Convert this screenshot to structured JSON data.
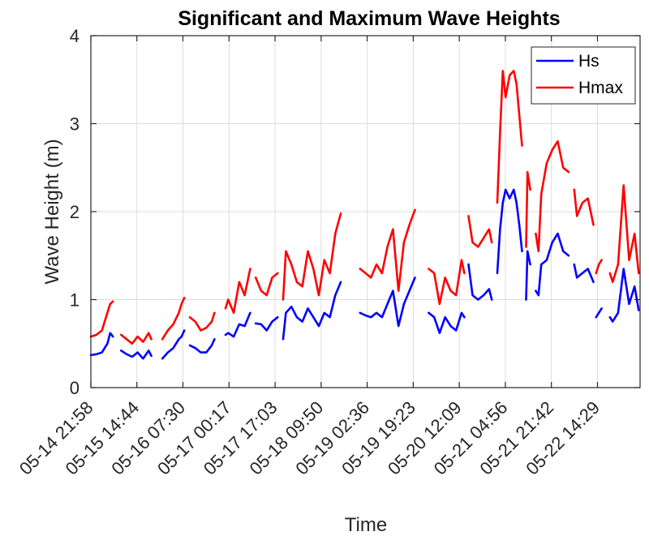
{
  "chart_data": {
    "type": "line",
    "title": "Significant and Maximum Wave Heights",
    "xlabel": "Time",
    "ylabel": "Wave Height (m)",
    "ylim": [
      0,
      4
    ],
    "yticks": [
      0,
      1,
      2,
      3,
      4
    ],
    "xlim": [
      "05-14 21:58",
      "05-23 06:00"
    ],
    "xticks": [
      "05-14 21:58",
      "05-15 14:44",
      "05-16 07:30",
      "05-17 00:17",
      "05-17 17:03",
      "05-18 09:50",
      "05-19 02:36",
      "05-19 19:23",
      "05-20 12:09",
      "05-21 04:56",
      "05-21 21:42",
      "05-22 14:29"
    ],
    "grid": true,
    "legend": "top-right",
    "colors": {
      "Hs": "#0000ff",
      "Hmax": "#ff0000"
    },
    "series": [
      {
        "name": "Hs",
        "segments": [
          [
            [
              "05-14 21:58",
              0.37
            ],
            [
              "05-15 00:00",
              0.38
            ],
            [
              "05-15 02:00",
              0.4
            ],
            [
              "05-15 03:00",
              0.45
            ],
            [
              "05-15 04:00",
              0.5
            ],
            [
              "05-15 05:00",
              0.62
            ],
            [
              "05-15 06:00",
              0.58
            ]
          ],
          [
            [
              "05-15 09:00",
              0.42
            ],
            [
              "05-15 11:00",
              0.38
            ],
            [
              "05-15 13:00",
              0.35
            ],
            [
              "05-15 15:00",
              0.4
            ],
            [
              "05-15 17:00",
              0.33
            ],
            [
              "05-15 19:00",
              0.42
            ],
            [
              "05-15 20:00",
              0.36
            ]
          ],
          [
            [
              "05-16 00:00",
              0.33
            ],
            [
              "05-16 02:00",
              0.4
            ],
            [
              "05-16 04:00",
              0.45
            ],
            [
              "05-16 06:00",
              0.55
            ],
            [
              "05-16 07:00",
              0.58
            ],
            [
              "05-16 08:00",
              0.65
            ]
          ],
          [
            [
              "05-16 10:00",
              0.48
            ],
            [
              "05-16 12:00",
              0.45
            ],
            [
              "05-16 14:00",
              0.4
            ],
            [
              "05-16 16:00",
              0.4
            ],
            [
              "05-16 18:00",
              0.48
            ],
            [
              "05-16 19:00",
              0.55
            ]
          ],
          [
            [
              "05-16 23:00",
              0.6
            ],
            [
              "05-17 00:00",
              0.62
            ],
            [
              "05-17 02:00",
              0.58
            ],
            [
              "05-17 04:00",
              0.72
            ],
            [
              "05-17 06:00",
              0.7
            ],
            [
              "05-17 08:00",
              0.85
            ]
          ],
          [
            [
              "05-17 10:00",
              0.73
            ],
            [
              "05-17 12:00",
              0.72
            ],
            [
              "05-17 14:00",
              0.65
            ],
            [
              "05-17 16:00",
              0.75
            ],
            [
              "05-17 18:00",
              0.8
            ]
          ],
          [
            [
              "05-17 20:00",
              0.55
            ],
            [
              "05-17 21:00",
              0.85
            ],
            [
              "05-17 23:00",
              0.92
            ],
            [
              "05-18 01:00",
              0.8
            ],
            [
              "05-18 03:00",
              0.75
            ],
            [
              "05-18 05:00",
              0.9
            ],
            [
              "05-18 07:00",
              0.8
            ],
            [
              "05-18 09:00",
              0.7
            ],
            [
              "05-18 11:00",
              0.85
            ],
            [
              "05-18 13:00",
              0.8
            ],
            [
              "05-18 15:00",
              1.05
            ],
            [
              "05-18 17:00",
              1.2
            ]
          ],
          [
            [
              "05-19 00:00",
              0.85
            ],
            [
              "05-19 02:00",
              0.82
            ],
            [
              "05-19 04:00",
              0.8
            ],
            [
              "05-19 06:00",
              0.85
            ],
            [
              "05-19 08:00",
              0.8
            ],
            [
              "05-19 10:00",
              0.95
            ],
            [
              "05-19 12:00",
              1.1
            ],
            [
              "05-19 14:00",
              0.7
            ],
            [
              "05-19 16:00",
              0.95
            ],
            [
              "05-19 18:00",
              1.1
            ],
            [
              "05-19 20:00",
              1.25
            ]
          ],
          [
            [
              "05-20 01:00",
              0.85
            ],
            [
              "05-20 03:00",
              0.8
            ],
            [
              "05-20 05:00",
              0.62
            ],
            [
              "05-20 07:00",
              0.8
            ],
            [
              "05-20 09:00",
              0.7
            ],
            [
              "05-20 11:00",
              0.65
            ],
            [
              "05-20 13:00",
              0.85
            ],
            [
              "05-20 14:00",
              0.8
            ]
          ],
          [
            [
              "05-20 15:30",
              1.4
            ],
            [
              "05-20 17:00",
              1.05
            ],
            [
              "05-20 19:00",
              1.0
            ],
            [
              "05-20 21:00",
              1.05
            ],
            [
              "05-20 23:00",
              1.12
            ],
            [
              "05-21 00:00",
              1.0
            ]
          ],
          [
            [
              "05-21 02:00",
              1.3
            ],
            [
              "05-21 03:00",
              1.8
            ],
            [
              "05-21 04:00",
              2.1
            ],
            [
              "05-21 05:00",
              2.25
            ],
            [
              "05-21 06:30",
              2.15
            ],
            [
              "05-21 08:00",
              2.25
            ],
            [
              "05-21 09:00",
              2.1
            ],
            [
              "05-21 10:00",
              1.85
            ],
            [
              "05-21 11:00",
              1.55
            ]
          ],
          [
            [
              "05-21 12:30",
              1.0
            ],
            [
              "05-21 13:00",
              1.55
            ],
            [
              "05-21 14:00",
              1.4
            ]
          ],
          [
            [
              "05-21 16:00",
              1.1
            ],
            [
              "05-21 17:00",
              1.05
            ],
            [
              "05-21 18:00",
              1.4
            ],
            [
              "05-21 20:00",
              1.45
            ],
            [
              "05-21 22:00",
              1.65
            ],
            [
              "05-22 00:00",
              1.75
            ],
            [
              "05-22 02:00",
              1.55
            ],
            [
              "05-22 04:00",
              1.5
            ]
          ],
          [
            [
              "05-22 06:00",
              1.4
            ],
            [
              "05-22 07:00",
              1.25
            ],
            [
              "05-22 09:00",
              1.3
            ],
            [
              "05-22 11:00",
              1.35
            ],
            [
              "05-22 13:00",
              1.2
            ]
          ],
          [
            [
              "05-22 14:00",
              0.8
            ],
            [
              "05-22 15:00",
              0.85
            ],
            [
              "05-22 16:00",
              0.9
            ]
          ],
          [
            [
              "05-22 19:00",
              0.8
            ],
            [
              "05-22 20:00",
              0.75
            ],
            [
              "05-22 22:00",
              0.85
            ],
            [
              "05-23 00:00",
              1.35
            ],
            [
              "05-23 02:00",
              0.95
            ],
            [
              "05-23 04:00",
              1.15
            ],
            [
              "05-23 05:30",
              0.88
            ]
          ]
        ]
      },
      {
        "name": "Hmax",
        "segments": [
          [
            [
              "05-14 21:58",
              0.58
            ],
            [
              "05-15 00:00",
              0.6
            ],
            [
              "05-15 02:00",
              0.65
            ],
            [
              "05-15 03:00",
              0.75
            ],
            [
              "05-15 04:00",
              0.85
            ],
            [
              "05-15 05:00",
              0.95
            ],
            [
              "05-15 06:00",
              0.98
            ]
          ],
          [
            [
              "05-15 09:00",
              0.6
            ],
            [
              "05-15 11:00",
              0.55
            ],
            [
              "05-15 13:00",
              0.5
            ],
            [
              "05-15 15:00",
              0.58
            ],
            [
              "05-15 17:00",
              0.52
            ],
            [
              "05-15 19:00",
              0.62
            ],
            [
              "05-15 20:00",
              0.55
            ]
          ],
          [
            [
              "05-16 00:00",
              0.55
            ],
            [
              "05-16 02:00",
              0.65
            ],
            [
              "05-16 04:00",
              0.72
            ],
            [
              "05-16 06:00",
              0.85
            ],
            [
              "05-16 07:00",
              0.95
            ],
            [
              "05-16 08:00",
              1.02
            ]
          ],
          [
            [
              "05-16 10:00",
              0.8
            ],
            [
              "05-16 12:00",
              0.75
            ],
            [
              "05-16 14:00",
              0.65
            ],
            [
              "05-16 16:00",
              0.68
            ],
            [
              "05-16 18:00",
              0.75
            ],
            [
              "05-16 19:00",
              0.85
            ]
          ],
          [
            [
              "05-16 23:00",
              0.9
            ],
            [
              "05-17 00:00",
              1.0
            ],
            [
              "05-17 02:00",
              0.85
            ],
            [
              "05-17 04:00",
              1.2
            ],
            [
              "05-17 06:00",
              1.05
            ],
            [
              "05-17 08:00",
              1.35
            ]
          ],
          [
            [
              "05-17 10:00",
              1.25
            ],
            [
              "05-17 12:00",
              1.1
            ],
            [
              "05-17 14:00",
              1.05
            ],
            [
              "05-17 16:00",
              1.25
            ],
            [
              "05-17 18:00",
              1.3
            ]
          ],
          [
            [
              "05-17 20:00",
              1.0
            ],
            [
              "05-17 21:00",
              1.55
            ],
            [
              "05-17 23:00",
              1.4
            ],
            [
              "05-18 01:00",
              1.2
            ],
            [
              "05-18 03:00",
              1.15
            ],
            [
              "05-18 05:00",
              1.55
            ],
            [
              "05-18 07:00",
              1.35
            ],
            [
              "05-18 09:00",
              1.05
            ],
            [
              "05-18 11:00",
              1.45
            ],
            [
              "05-18 13:00",
              1.3
            ],
            [
              "05-18 15:00",
              1.75
            ],
            [
              "05-18 17:00",
              1.98
            ]
          ],
          [
            [
              "05-19 00:00",
              1.35
            ],
            [
              "05-19 02:00",
              1.3
            ],
            [
              "05-19 04:00",
              1.25
            ],
            [
              "05-19 06:00",
              1.4
            ],
            [
              "05-19 08:00",
              1.3
            ],
            [
              "05-19 10:00",
              1.6
            ],
            [
              "05-19 12:00",
              1.8
            ],
            [
              "05-19 14:00",
              1.1
            ],
            [
              "05-19 16:00",
              1.65
            ],
            [
              "05-19 18:00",
              1.85
            ],
            [
              "05-19 20:00",
              2.02
            ]
          ],
          [
            [
              "05-20 01:00",
              1.35
            ],
            [
              "05-20 03:00",
              1.3
            ],
            [
              "05-20 05:00",
              0.95
            ],
            [
              "05-20 07:00",
              1.25
            ],
            [
              "05-20 09:00",
              1.1
            ],
            [
              "05-20 11:00",
              1.05
            ],
            [
              "05-20 13:00",
              1.45
            ],
            [
              "05-20 14:00",
              1.3
            ]
          ],
          [
            [
              "05-20 15:30",
              1.95
            ],
            [
              "05-20 17:00",
              1.65
            ],
            [
              "05-20 19:00",
              1.6
            ],
            [
              "05-20 21:00",
              1.7
            ],
            [
              "05-20 23:00",
              1.8
            ],
            [
              "05-21 00:00",
              1.65
            ]
          ],
          [
            [
              "05-21 02:00",
              2.1
            ],
            [
              "05-21 03:00",
              2.9
            ],
            [
              "05-21 04:00",
              3.6
            ],
            [
              "05-21 05:00",
              3.3
            ],
            [
              "05-21 06:30",
              3.55
            ],
            [
              "05-21 08:00",
              3.6
            ],
            [
              "05-21 09:00",
              3.45
            ],
            [
              "05-21 10:00",
              3.1
            ],
            [
              "05-21 11:00",
              2.75
            ]
          ],
          [
            [
              "05-21 12:30",
              1.6
            ],
            [
              "05-21 13:00",
              2.45
            ],
            [
              "05-21 14:00",
              2.25
            ]
          ],
          [
            [
              "05-21 16:00",
              1.75
            ],
            [
              "05-21 17:00",
              1.55
            ],
            [
              "05-21 18:00",
              2.2
            ],
            [
              "05-21 20:00",
              2.55
            ],
            [
              "05-21 22:00",
              2.7
            ],
            [
              "05-22 00:00",
              2.8
            ],
            [
              "05-22 02:00",
              2.5
            ],
            [
              "05-22 04:00",
              2.45
            ]
          ],
          [
            [
              "05-22 06:00",
              2.25
            ],
            [
              "05-22 07:00",
              1.95
            ],
            [
              "05-22 09:00",
              2.1
            ],
            [
              "05-22 11:00",
              2.15
            ],
            [
              "05-22 13:00",
              1.85
            ]
          ],
          [
            [
              "05-22 14:00",
              1.3
            ],
            [
              "05-22 15:00",
              1.4
            ],
            [
              "05-22 16:00",
              1.45
            ]
          ],
          [
            [
              "05-22 19:00",
              1.3
            ],
            [
              "05-22 20:00",
              1.2
            ],
            [
              "05-22 22:00",
              1.4
            ],
            [
              "05-23 00:00",
              2.3
            ],
            [
              "05-23 02:00",
              1.45
            ],
            [
              "05-23 04:00",
              1.75
            ],
            [
              "05-23 05:30",
              1.3
            ]
          ]
        ]
      }
    ]
  }
}
